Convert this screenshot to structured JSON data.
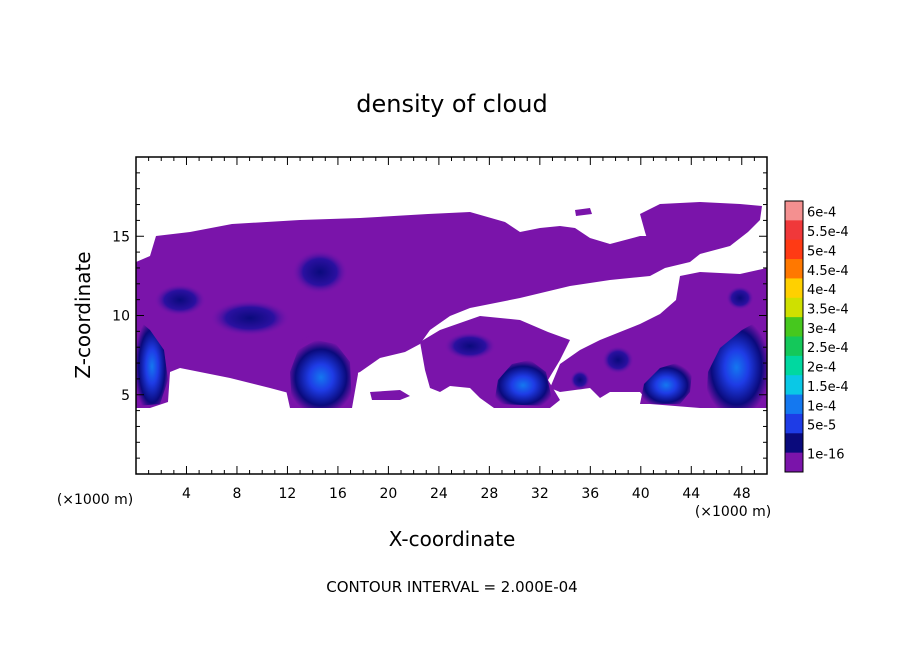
{
  "chart_data": {
    "type": "heatmap",
    "title": "density of cloud",
    "xlabel": "X-coordinate",
    "ylabel": "Z-coordinate",
    "x_unit": "(×1000 m)",
    "x_unit_right": "(×1000 m)",
    "xlim": [
      0,
      50
    ],
    "ylim": [
      0,
      20
    ],
    "x_ticks": [
      4,
      8,
      12,
      16,
      20,
      24,
      28,
      32,
      36,
      40,
      44,
      48
    ],
    "y_ticks": [
      5,
      10,
      15
    ],
    "note": "CONTOUR INTERVAL = 2.000E-04",
    "colorbar": {
      "labels": [
        "6e-4",
        "5.5e-4",
        "5e-4",
        "4.5e-4",
        "4e-4",
        "3.5e-4",
        "3e-4",
        "2.5e-4",
        "2e-4",
        "1.5e-4",
        "1e-4",
        "5e-5",
        "1e-16"
      ],
      "colors": [
        "#f49090",
        "#f0383a",
        "#ff3a14",
        "#ff7800",
        "#ffd000",
        "#cfe000",
        "#46c81e",
        "#14c85a",
        "#00d8a0",
        "#0ac8e6",
        "#1478f0",
        "#1e3ce6",
        "#0a0a7c",
        "#7a14aa"
      ]
    },
    "cloud_base_color": "#7a14aa",
    "regions": [
      {
        "name": "upper cloud layer",
        "x": [
          0,
          50
        ],
        "z": [
          4.3,
          17
        ]
      },
      {
        "name": "core near x=0",
        "x": [
          0,
          2.5
        ],
        "z": [
          4.5,
          10
        ],
        "peak": 0.00015
      },
      {
        "name": "core near x=14",
        "x": [
          11.5,
          17
        ],
        "z": [
          4.2,
          8.5
        ],
        "peak": 0.00015
      },
      {
        "name": "core near x=31",
        "x": [
          28,
          33
        ],
        "z": [
          4.2,
          7.8
        ],
        "peak": 0.00015
      },
      {
        "name": "core near x=42",
        "x": [
          39.5,
          44
        ],
        "z": [
          4.5,
          7
        ],
        "peak": 0.00015
      },
      {
        "name": "core near x=48",
        "x": [
          45,
          50
        ],
        "z": [
          4.2,
          9.5
        ],
        "peak": 0.00015
      }
    ]
  }
}
